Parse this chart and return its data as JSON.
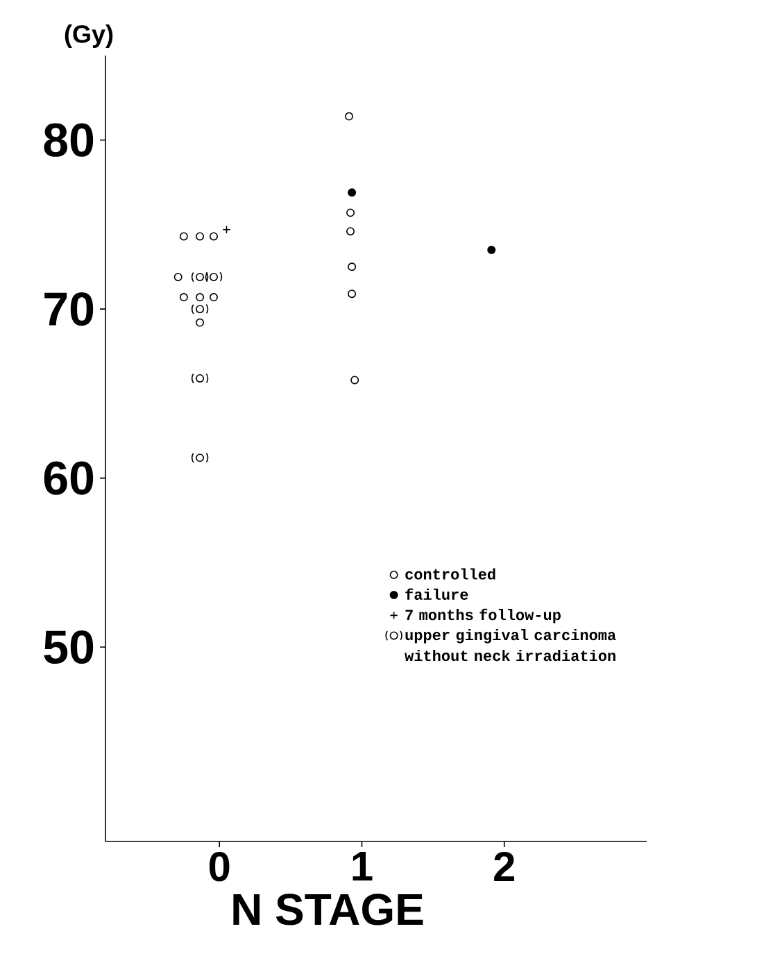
{
  "chart_data": {
    "type": "scatter",
    "xlabel": "N STAGE",
    "ylabel": "(Gy)",
    "xlim": [
      -0.8,
      3
    ],
    "ylim": [
      38.5,
      85
    ],
    "xticks": [
      0,
      1,
      2
    ],
    "yticks": [
      50,
      60,
      70,
      80
    ],
    "legend": "bottom right",
    "grid": false,
    "series": [
      {
        "name": "controlled",
        "color": "#ffffff",
        "marker": "circle",
        "x": [
          -0.25,
          -0.137,
          -0.04,
          -0.29,
          -0.25,
          -0.137,
          -0.04,
          -0.137,
          0.91,
          0.92,
          0.92,
          0.93,
          0.93,
          0.95
        ],
        "values": [
          74.3,
          74.3,
          74.3,
          71.9,
          70.7,
          70.7,
          70.7,
          69.2,
          81.4,
          75.7,
          74.6,
          72.5,
          70.9,
          65.8
        ]
      },
      {
        "name": "failure",
        "color": "#000000",
        "marker": "circle",
        "x": [
          0.93,
          1.91
        ],
        "values": [
          76.9,
          73.5
        ]
      },
      {
        "name": "7 months follow-up",
        "color": "#000000",
        "marker": "cross",
        "x": [
          0.05
        ],
        "values": [
          74.7
        ]
      },
      {
        "name": "upper gingival carcinoma without neck irradiation",
        "color": "#ffffff",
        "marker": "bracketed circle",
        "x": [
          -0.137,
          -0.04,
          -0.137,
          -0.137,
          -0.137
        ],
        "values": [
          71.9,
          71.9,
          70.0,
          65.9,
          61.2
        ]
      }
    ]
  }
}
